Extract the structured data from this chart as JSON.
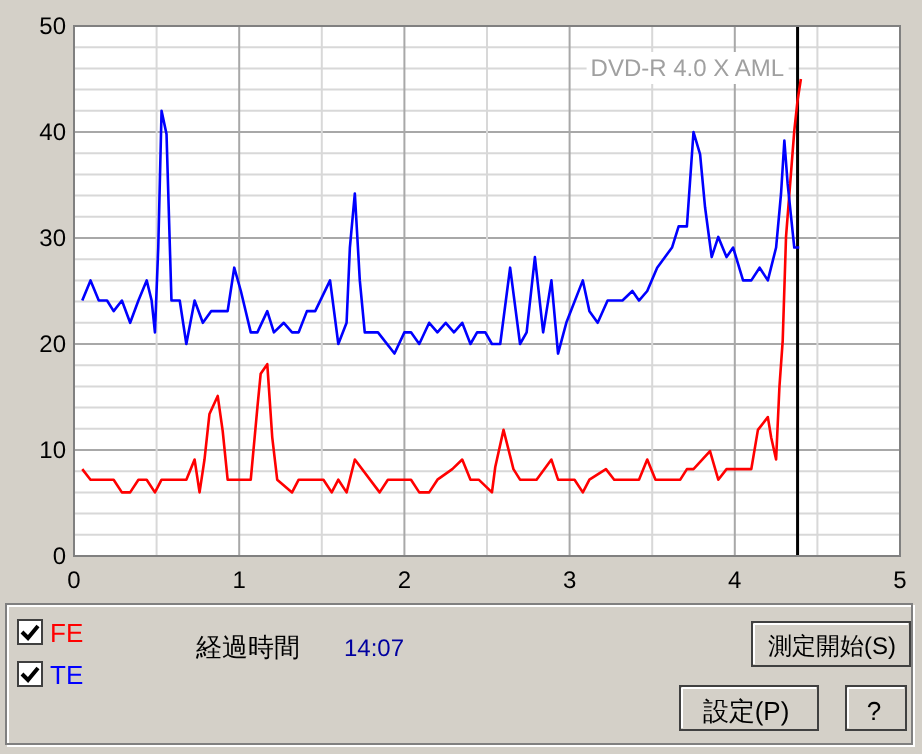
{
  "chart_data": {
    "type": "line",
    "xlim": [
      0,
      5
    ],
    "ylim": [
      0,
      50
    ],
    "xticks": [
      0,
      {
        "value": 0.5,
        "label": null
      },
      1,
      {
        "value": 1.5,
        "label": null
      },
      2,
      {
        "value": 2.5,
        "label": null
      },
      3,
      {
        "value": 3.5,
        "label": null
      },
      4,
      {
        "value": 4.5,
        "label": null
      },
      5
    ],
    "yticks": [
      0,
      {
        "value": 2,
        "label": null
      },
      {
        "value": 4,
        "label": null
      },
      {
        "value": 6,
        "label": null
      },
      {
        "value": 8,
        "label": null
      },
      10,
      {
        "value": 12,
        "label": null
      },
      {
        "value": 14,
        "label": null
      },
      {
        "value": 16,
        "label": null
      },
      {
        "value": 18,
        "label": null
      },
      20,
      {
        "value": 22,
        "label": null
      },
      {
        "value": 24,
        "label": null
      },
      {
        "value": 26,
        "label": null
      },
      {
        "value": 28,
        "label": null
      },
      30,
      {
        "value": 32,
        "label": null
      },
      {
        "value": 34,
        "label": null
      },
      {
        "value": 36,
        "label": null
      },
      {
        "value": 38,
        "label": null
      },
      40,
      {
        "value": 42,
        "label": null
      },
      {
        "value": 44,
        "label": null
      },
      {
        "value": 46,
        "label": null
      },
      {
        "value": 48,
        "label": null
      },
      50
    ],
    "grid": true,
    "legend": "bottom",
    "marker": "none",
    "line_style": "solid",
    "series": [
      {
        "name": "FE",
        "color": "#ff0000",
        "x": [
          0.05,
          0.1,
          0.24,
          0.29,
          0.34,
          0.39,
          0.44,
          0.49,
          0.53,
          0.68,
          0.73,
          0.76,
          0.79,
          0.82,
          0.87,
          0.9,
          0.93,
          1.07,
          1.11,
          1.13,
          1.17,
          1.2,
          1.23,
          1.32,
          1.36,
          1.51,
          1.56,
          1.6,
          1.65,
          1.7,
          1.85,
          1.9,
          2.04,
          2.09,
          2.15,
          2.2,
          2.29,
          2.35,
          2.4,
          2.45,
          2.53,
          2.55,
          2.6,
          2.66,
          2.7,
          2.8,
          2.89,
          2.93,
          3.03,
          3.08,
          3.12,
          3.22,
          3.27,
          3.42,
          3.47,
          3.52,
          3.67,
          3.71,
          3.75,
          3.85,
          3.9,
          3.95,
          4.1,
          4.14,
          4.2,
          4.22,
          4.25,
          4.27,
          4.29,
          4.31,
          4.36,
          4.38,
          4.4
        ],
        "values": [
          8.2,
          7.2,
          7.2,
          6,
          6,
          7.2,
          7.2,
          6,
          7.2,
          7.2,
          9.1,
          6,
          9.1,
          13.4,
          15.1,
          11.8,
          7.2,
          7.2,
          14,
          17.2,
          18.1,
          11.2,
          7.2,
          6,
          7.2,
          7.2,
          6,
          7.2,
          6,
          9.1,
          6,
          7.2,
          7.2,
          6,
          6,
          7.2,
          8.2,
          9.1,
          7.2,
          7.2,
          6,
          8.4,
          11.9,
          8.2,
          7.2,
          7.2,
          9.1,
          7.2,
          7.2,
          6,
          7.2,
          8.2,
          7.2,
          7.2,
          9.1,
          7.2,
          7.2,
          8.2,
          8.2,
          9.9,
          7.2,
          8.2,
          8.2,
          11.9,
          13.1,
          11.2,
          9.1,
          15.9,
          20.3,
          30.1,
          40.1,
          43,
          45
        ]
      },
      {
        "name": "TE",
        "color": "#0000ff",
        "x": [
          0.05,
          0.1,
          0.15,
          0.2,
          0.24,
          0.29,
          0.34,
          0.39,
          0.44,
          0.47,
          0.49,
          0.51,
          0.53,
          0.56,
          0.59,
          0.64,
          0.68,
          0.73,
          0.78,
          0.83,
          0.93,
          0.97,
          1.01,
          1.07,
          1.11,
          1.17,
          1.21,
          1.27,
          1.32,
          1.36,
          1.41,
          1.46,
          1.55,
          1.6,
          1.65,
          1.67,
          1.7,
          1.73,
          1.76,
          1.84,
          1.94,
          2.0,
          2.04,
          2.09,
          2.15,
          2.2,
          2.25,
          2.3,
          2.35,
          2.4,
          2.44,
          2.49,
          2.53,
          2.58,
          2.64,
          2.7,
          2.74,
          2.79,
          2.84,
          2.89,
          2.93,
          2.98,
          3.08,
          3.12,
          3.17,
          3.23,
          3.32,
          3.38,
          3.42,
          3.47,
          3.53,
          3.62,
          3.66,
          3.71,
          3.75,
          3.79,
          3.82,
          3.86,
          3.9,
          3.95,
          3.99,
          4.05,
          4.1,
          4.15,
          4.2,
          4.25,
          4.28,
          4.3,
          4.32,
          4.36,
          4.39
        ],
        "values": [
          24.1,
          26,
          24.1,
          24.1,
          23.1,
          24.1,
          22,
          24.1,
          26,
          24.1,
          21.1,
          29.1,
          42,
          39.8,
          24.1,
          24.1,
          20,
          24.1,
          22,
          23.1,
          23.1,
          27.2,
          25,
          21.1,
          21.1,
          23.1,
          21.1,
          22,
          21.1,
          21.1,
          23.1,
          23.1,
          26,
          20,
          22,
          29.1,
          34.2,
          26,
          21.1,
          21.1,
          19.1,
          21.1,
          21.1,
          20,
          22,
          21.1,
          22,
          21.1,
          22,
          20,
          21.1,
          21.1,
          20,
          20,
          27.2,
          20,
          21.1,
          28.2,
          21.1,
          26,
          19.1,
          22,
          26,
          23.1,
          22,
          24.1,
          24.1,
          25,
          24.1,
          25,
          27.2,
          29.1,
          31.1,
          31.1,
          40,
          37.9,
          32.9,
          28.2,
          30.1,
          28.2,
          29.1,
          26,
          26,
          27.2,
          26,
          29.1,
          34.2,
          39.2,
          35.1,
          29.1,
          29.1
        ]
      }
    ],
    "ref_lines": [
      {
        "axis": "x",
        "value": 4.38,
        "color": "#000000",
        "line_style": "solid"
      }
    ],
    "annotations": [
      "DVD-R   4.0 X   AML",
      "経過時間",
      "14:07",
      "測定開始(S)",
      "設定(P)",
      "?"
    ]
  }
}
